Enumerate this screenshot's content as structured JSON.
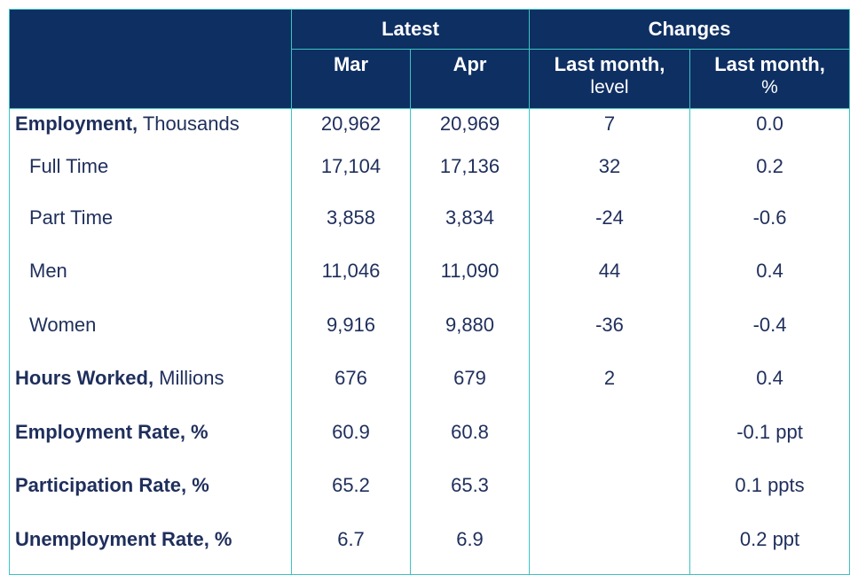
{
  "header": {
    "latest": "Latest",
    "changes": "Changes",
    "mar": "Mar",
    "apr": "Apr",
    "lm_level_1": "Last month,",
    "lm_level_2": "level",
    "lm_pct_1": "Last month,",
    "lm_pct_2": "%"
  },
  "rows": [
    {
      "bold": "Employment,",
      "rest": " Thousands",
      "mar": "20,962",
      "apr": "20,969",
      "level": "7",
      "pct": "0.0"
    },
    {
      "bold": "",
      "rest": "Full Time",
      "mar": "17,104",
      "apr": "17,136",
      "level": "32",
      "pct": "0.2"
    },
    {
      "bold": "",
      "rest": "Part Time",
      "mar": "3,858",
      "apr": "3,834",
      "level": "-24",
      "pct": "-0.6"
    },
    {
      "bold": "",
      "rest": "Men",
      "mar": "11,046",
      "apr": "11,090",
      "level": "44",
      "pct": "0.4"
    },
    {
      "bold": "",
      "rest": "Women",
      "mar": "9,916",
      "apr": "9,880",
      "level": "-36",
      "pct": "-0.4"
    },
    {
      "bold": "Hours Worked,",
      "rest": " Millions",
      "mar": "676",
      "apr": "679",
      "level": "2",
      "pct": "0.4"
    },
    {
      "bold": "Employment Rate, %",
      "rest": "",
      "mar": "60.9",
      "apr": "60.8",
      "level": "",
      "pct": "-0.1 ppt"
    },
    {
      "bold": "Participation Rate, %",
      "rest": "",
      "mar": "65.2",
      "apr": "65.3",
      "level": "",
      "pct": "0.1 ppts"
    },
    {
      "bold": "Unemployment Rate, %",
      "rest": "",
      "mar": "6.7",
      "apr": "6.9",
      "level": "",
      "pct": "0.2 ppt"
    }
  ]
}
